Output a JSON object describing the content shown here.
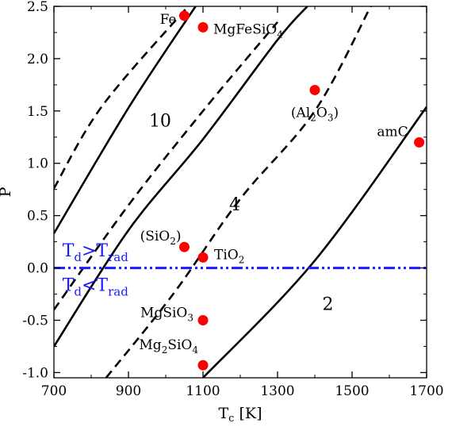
{
  "chart_data": {
    "type": "scatter",
    "title": "",
    "xlabel": "T",
    "xlabel_sub": "c",
    "xlabel_unit": " [K]",
    "ylabel": "P",
    "xlim": [
      700,
      1700
    ],
    "ylim": [
      -1.05,
      2.5
    ],
    "x_ticks": [
      700,
      900,
      1100,
      1300,
      1500,
      1700
    ],
    "x_tick_labels": [
      "700",
      "900",
      "1100",
      "1300",
      "1500",
      "1700"
    ],
    "y_ticks": [
      -1.0,
      -0.5,
      0.0,
      0.5,
      1.0,
      1.5,
      2.0,
      2.5
    ],
    "y_tick_labels": [
      "-1.0",
      "-0.5",
      "0.0",
      "0.5",
      "1.0",
      "1.5",
      "2.0",
      "2.5"
    ],
    "grid": false,
    "points": [
      {
        "x": 1050,
        "y": 2.41,
        "label": [
          {
            "t": "Fe"
          }
        ]
      },
      {
        "x": 1100,
        "y": 2.3,
        "label": [
          {
            "t": "MgFeSiO"
          },
          {
            "t": "4",
            "sub": true
          }
        ]
      },
      {
        "x": 1400,
        "y": 1.7,
        "label": [
          {
            "t": "(Al"
          },
          {
            "t": "2",
            "sub": true
          },
          {
            "t": "O"
          },
          {
            "t": "3",
            "sub": true
          },
          {
            "t": ")"
          }
        ]
      },
      {
        "x": 1680,
        "y": 1.2,
        "label": [
          {
            "t": "amC"
          }
        ]
      },
      {
        "x": 1050,
        "y": 0.2,
        "label": [
          {
            "t": "(SiO"
          },
          {
            "t": "2",
            "sub": true
          },
          {
            "t": ")"
          }
        ]
      },
      {
        "x": 1100,
        "y": 0.1,
        "label": [
          {
            "t": "TiO"
          },
          {
            "t": "2",
            "sub": true
          }
        ]
      },
      {
        "x": 1100,
        "y": -0.5,
        "label": [
          {
            "t": "MgSiO"
          },
          {
            "t": "3",
            "sub": true
          }
        ]
      },
      {
        "x": 1100,
        "y": -0.93,
        "label": [
          {
            "t": "Mg"
          },
          {
            "t": "2",
            "sub": true
          },
          {
            "t": "SiO"
          },
          {
            "t": "4",
            "sub": true
          }
        ]
      }
    ],
    "point_color": "#ff0000",
    "curves": [
      {
        "style": "dashed",
        "x": [
          700,
          830,
          1060
        ],
        "y": [
          0.76,
          1.55,
          2.5
        ]
      },
      {
        "style": "solid",
        "x": [
          700,
          900,
          1080
        ],
        "y": [
          0.33,
          1.53,
          2.5
        ]
      },
      {
        "style": "dashed",
        "x": [
          700,
          900,
          1100,
          1300
        ],
        "y": [
          -0.4,
          0.6,
          1.5,
          2.35
        ]
      },
      {
        "style": "solid",
        "x": [
          700,
          900,
          1100,
          1300,
          1380
        ],
        "y": [
          -0.75,
          0.36,
          1.23,
          2.18,
          2.5
        ]
      },
      {
        "style": "dashed",
        "x": [
          840,
          1020,
          1200,
          1400,
          1550
        ],
        "y": [
          -1.05,
          -0.25,
          0.66,
          1.5,
          2.5
        ]
      },
      {
        "style": "solid",
        "x": [
          1100,
          1400,
          1700
        ],
        "y": [
          -1.05,
          0.07,
          1.54
        ]
      }
    ],
    "curve_labels": [
      {
        "text": "10",
        "x": 985,
        "y": 1.35
      },
      {
        "text": "4",
        "x": 1185,
        "y": 0.55
      },
      {
        "text": "2",
        "x": 1435,
        "y": -0.4
      }
    ],
    "hline": {
      "y": 0.0,
      "style": "dash-dot-dot",
      "color": "#1a1aff"
    },
    "region_labels": [
      {
        "main": "T",
        "sub1": "d",
        "op": ">T",
        "sub2": "rad",
        "x": 710,
        "y": 0.17
      },
      {
        "main": "T",
        "sub1": "d",
        "op": "<T",
        "sub2": "rad",
        "x": 710,
        "y": -0.16
      }
    ]
  }
}
